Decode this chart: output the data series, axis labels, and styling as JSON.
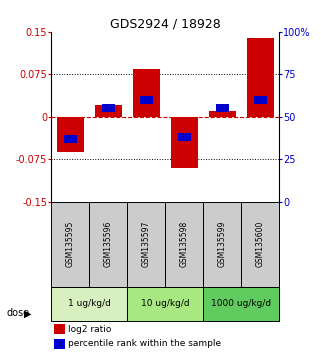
{
  "title": "GDS2924 / 18928",
  "samples": [
    "GSM135595",
    "GSM135596",
    "GSM135597",
    "GSM135598",
    "GSM135599",
    "GSM135600"
  ],
  "log2_ratio": [
    -0.062,
    0.02,
    0.085,
    -0.091,
    0.01,
    0.14
  ],
  "percentile_rank": [
    37,
    55,
    60,
    38,
    55,
    60
  ],
  "dose_groups": [
    {
      "label": "1 ug/kg/d",
      "samples": [
        0,
        1
      ]
    },
    {
      "label": "10 ug/kg/d",
      "samples": [
        2,
        3
      ]
    },
    {
      "label": "1000 ug/kg/d",
      "samples": [
        4,
        5
      ]
    }
  ],
  "group_colors": [
    "#d8f0c0",
    "#a8e880",
    "#60cc60"
  ],
  "ylim_left": [
    -0.15,
    0.15
  ],
  "ylim_right": [
    0,
    100
  ],
  "yticks_left": [
    -0.15,
    -0.075,
    0,
    0.075,
    0.15
  ],
  "yticks_right": [
    0,
    25,
    50,
    75,
    100
  ],
  "ytick_labels_left": [
    "-0.15",
    "-0.075",
    "0",
    "0.075",
    "0.15"
  ],
  "ytick_labels_right": [
    "0",
    "25",
    "50",
    "75",
    "100%"
  ],
  "red_color": "#cc0000",
  "blue_color": "#0000cc",
  "bar_width": 0.7,
  "blue_bar_width": 0.35,
  "blue_bar_height": 0.014,
  "sample_bg_color": "#cccccc",
  "dose_label": "dose",
  "legend_log2": "log2 ratio",
  "legend_pct": "percentile rank within the sample"
}
